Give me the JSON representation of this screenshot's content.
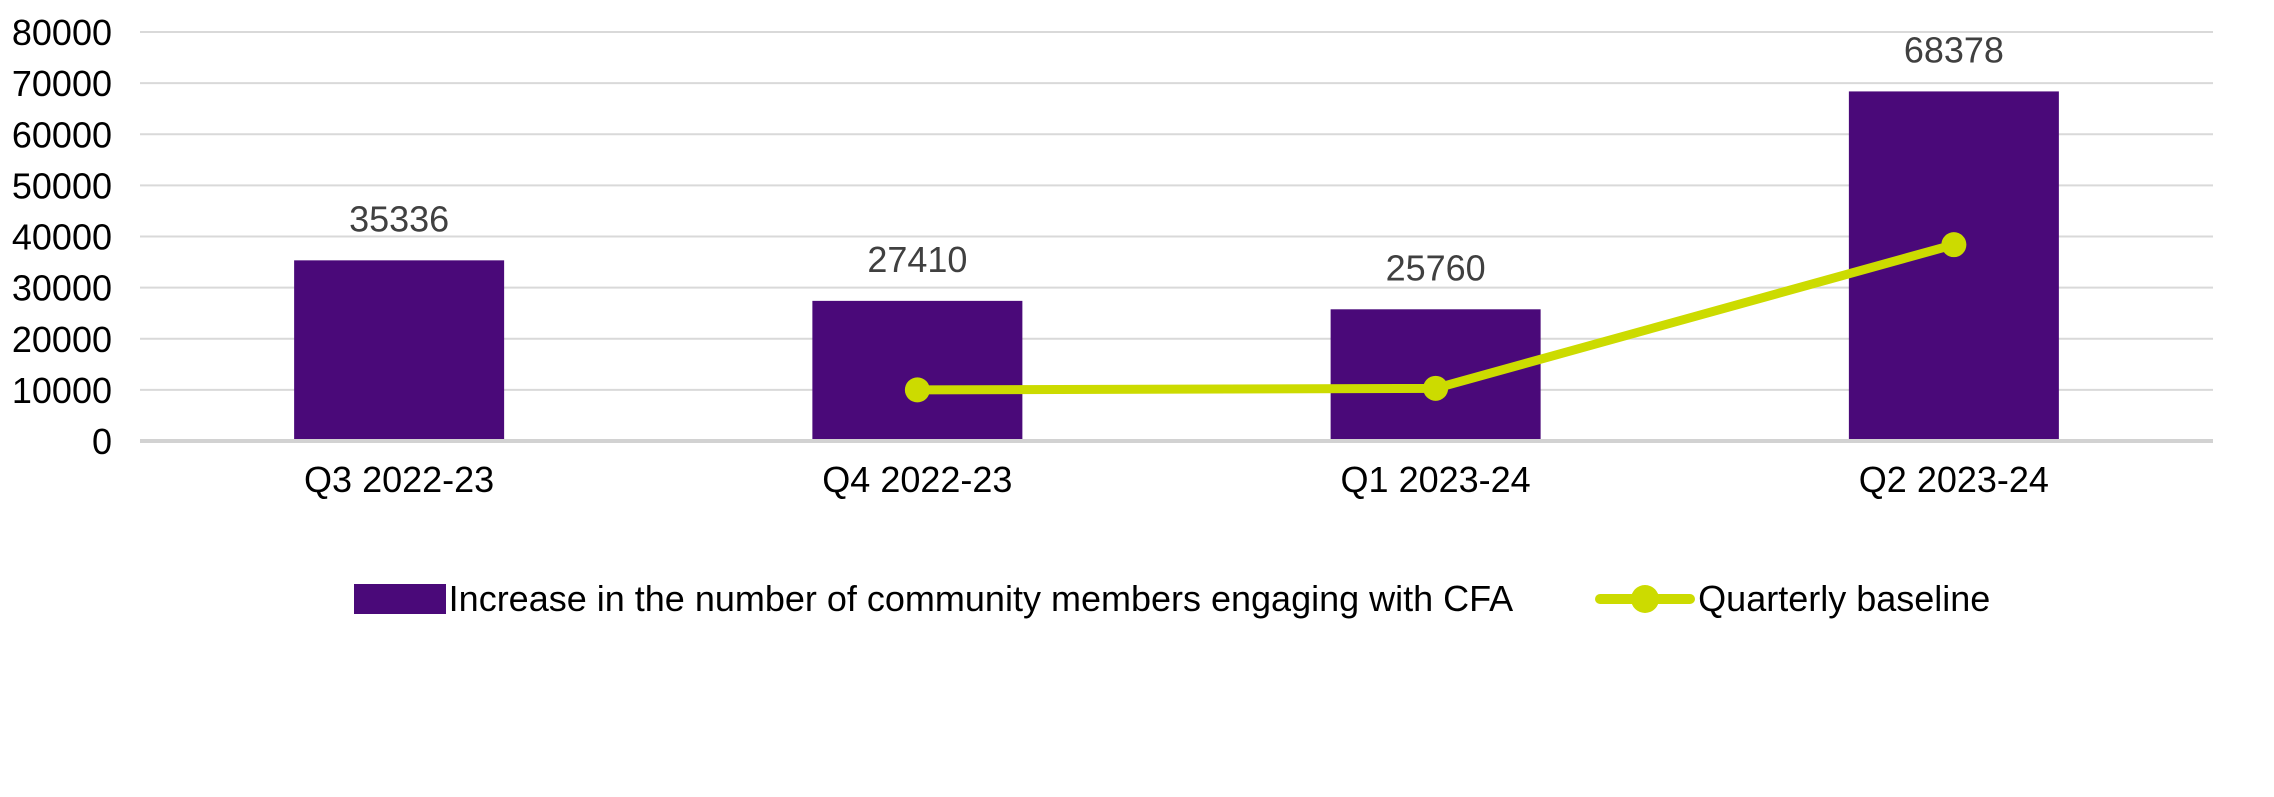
{
  "chart_data": {
    "type": "bar",
    "subtype": "bar-line-combo",
    "title": "",
    "xlabel": "",
    "ylabel": "",
    "categories": [
      "Q3 2022-23",
      "Q4 2022-23",
      "Q1 2023-24",
      "Q2 2023-24"
    ],
    "series": [
      {
        "name": "Increase in the number of community members engaging with CFA",
        "type": "bar",
        "color": "#4A0979",
        "values": [
          35336,
          27410,
          25760,
          68378
        ],
        "data_labels": [
          "35336",
          "27410",
          "25760",
          "68378"
        ]
      },
      {
        "name": "Quarterly baseline",
        "type": "line",
        "color": "#CCDB00",
        "values": [
          null,
          10000,
          10300,
          38400
        ]
      }
    ],
    "ylim": [
      0,
      80000
    ],
    "yticks": [
      0,
      10000,
      20000,
      30000,
      40000,
      50000,
      60000,
      70000,
      80000
    ],
    "ytick_labels": [
      "0",
      "10000",
      "20000",
      "30000",
      "40000",
      "50000",
      "60000",
      "70000",
      "80000"
    ],
    "grid": true,
    "legend_position": "bottom"
  },
  "colors": {
    "background": "#FFFFFF",
    "bar": "#4A0979",
    "line": "#CCDB00",
    "gridline": "#D9D9D9",
    "axis_line": "#D2D2D2",
    "value_label": "#404040",
    "tick_label": "#000000"
  }
}
